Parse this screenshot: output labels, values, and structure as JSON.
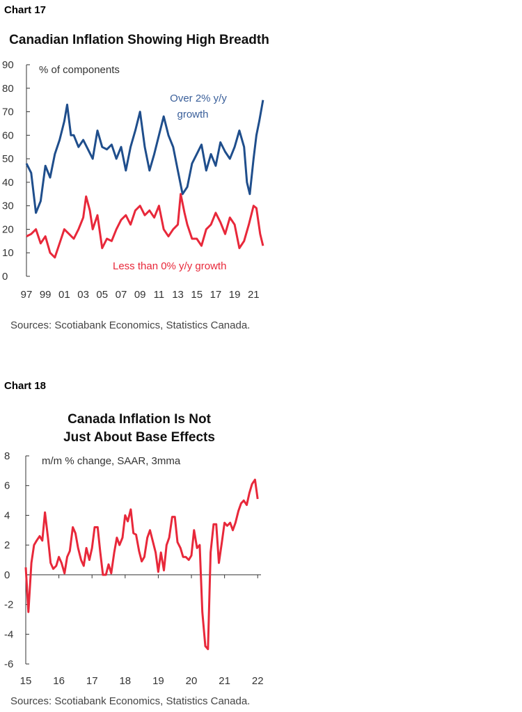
{
  "charts": [
    {
      "label": "Chart 17",
      "title_lines": [
        "Canadian Inflation Showing High Breadth"
      ],
      "unit_label": "% of components",
      "yticks": [
        "90",
        "80",
        "70",
        "60",
        "50",
        "40",
        "30",
        "20",
        "10",
        "0"
      ],
      "xticks": [
        "97",
        "99",
        "01",
        "03",
        "05",
        "07",
        "09",
        "11",
        "13",
        "15",
        "17",
        "19",
        "21"
      ],
      "annotations": {
        "series1_line1": "Over 2% y/y",
        "series1_line2": "growth",
        "series2": "Less than 0% y/y growth"
      },
      "source": "Sources: Scotiabank Economics, Statistics Canada."
    },
    {
      "label": "Chart 18",
      "title_lines": [
        "Canada Inflation Is Not",
        "Just About Base Effects"
      ],
      "unit_label": "m/m % change, SAAR, 3mma",
      "yticks": [
        "8",
        "6",
        "4",
        "2",
        "0",
        "-2",
        "-4",
        "-6"
      ],
      "xticks": [
        "15",
        "16",
        "17",
        "18",
        "19",
        "20",
        "21",
        "22"
      ],
      "source": "Sources: Scotiabank Economics, Statistics Canada."
    }
  ],
  "chart_data": [
    {
      "type": "line",
      "title": "Canadian Inflation Showing High Breadth",
      "ylabel": "% of components",
      "ylim": [
        0,
        90
      ],
      "xlim": [
        1997,
        2022.3
      ],
      "grid": false,
      "colors": {
        "over2": "#1f4e8c",
        "below0": "#e8283a"
      },
      "series": [
        {
          "name": "Over 2% y/y growth",
          "x": [
            1997.0,
            1997.5,
            1998.0,
            1998.5,
            1999.0,
            1999.5,
            2000.0,
            2000.5,
            2001.0,
            2001.3,
            2001.7,
            2002.0,
            2002.5,
            2003.0,
            2003.5,
            2004.0,
            2004.5,
            2005.0,
            2005.5,
            2006.0,
            2006.5,
            2007.0,
            2007.5,
            2008.0,
            2008.5,
            2009.0,
            2009.5,
            2010.0,
            2010.5,
            2011.0,
            2011.5,
            2012.0,
            2012.5,
            2013.0,
            2013.5,
            2014.0,
            2014.5,
            2015.0,
            2015.5,
            2016.0,
            2016.5,
            2017.0,
            2017.5,
            2018.0,
            2018.5,
            2019.0,
            2019.5,
            2020.0,
            2020.3,
            2020.6,
            2021.0,
            2021.3,
            2021.6,
            2022.0
          ],
          "values": [
            48,
            44,
            27,
            32,
            47,
            42,
            52,
            58,
            66,
            73,
            60,
            60,
            55,
            58,
            54,
            50,
            62,
            55,
            54,
            56,
            50,
            55,
            45,
            55,
            62,
            70,
            55,
            45,
            52,
            60,
            68,
            60,
            55,
            45,
            35,
            38,
            48,
            52,
            56,
            45,
            52,
            47,
            57,
            53,
            50,
            55,
            62,
            55,
            40,
            35,
            50,
            60,
            66,
            75
          ]
        },
        {
          "name": "Less than 0% y/y growth",
          "x": [
            1997.0,
            1997.5,
            1998.0,
            1998.5,
            1999.0,
            1999.5,
            2000.0,
            2000.5,
            2001.0,
            2001.5,
            2002.0,
            2002.5,
            2003.0,
            2003.3,
            2003.7,
            2004.0,
            2004.5,
            2005.0,
            2005.5,
            2006.0,
            2006.5,
            2007.0,
            2007.5,
            2008.0,
            2008.5,
            2009.0,
            2009.5,
            2010.0,
            2010.5,
            2011.0,
            2011.5,
            2012.0,
            2012.5,
            2013.0,
            2013.3,
            2013.7,
            2014.0,
            2014.5,
            2015.0,
            2015.5,
            2016.0,
            2016.5,
            2017.0,
            2017.5,
            2018.0,
            2018.5,
            2019.0,
            2019.5,
            2020.0,
            2020.5,
            2021.0,
            2021.3,
            2021.7,
            2022.0
          ],
          "values": [
            17,
            18,
            20,
            14,
            17,
            10,
            8,
            14,
            20,
            18,
            16,
            20,
            25,
            34,
            28,
            20,
            26,
            12,
            16,
            15,
            20,
            24,
            26,
            22,
            28,
            30,
            26,
            28,
            25,
            30,
            20,
            17,
            20,
            22,
            35,
            27,
            22,
            16,
            16,
            13,
            20,
            22,
            27,
            23,
            18,
            25,
            22,
            12,
            15,
            22,
            30,
            29,
            18,
            13
          ]
        }
      ]
    },
    {
      "type": "line",
      "title": "Canada Inflation Is Not Just About Base Effects",
      "ylabel": "m/m % change, SAAR, 3mma",
      "ylim": [
        -6,
        8
      ],
      "xlim": [
        2015,
        2022.1
      ],
      "grid": false,
      "colors": {
        "line": "#e8283a"
      },
      "series": [
        {
          "name": "",
          "x": [
            2015.0,
            2015.08,
            2015.17,
            2015.25,
            2015.33,
            2015.42,
            2015.5,
            2015.58,
            2015.67,
            2015.75,
            2015.83,
            2015.92,
            2016.0,
            2016.08,
            2016.17,
            2016.25,
            2016.33,
            2016.42,
            2016.5,
            2016.58,
            2016.67,
            2016.75,
            2016.83,
            2016.92,
            2017.0,
            2017.08,
            2017.17,
            2017.25,
            2017.33,
            2017.42,
            2017.5,
            2017.58,
            2017.67,
            2017.75,
            2017.83,
            2017.92,
            2018.0,
            2018.08,
            2018.17,
            2018.25,
            2018.33,
            2018.42,
            2018.5,
            2018.58,
            2018.67,
            2018.75,
            2018.83,
            2018.92,
            2019.0,
            2019.08,
            2019.17,
            2019.25,
            2019.33,
            2019.42,
            2019.5,
            2019.58,
            2019.67,
            2019.75,
            2019.83,
            2019.92,
            2020.0,
            2020.08,
            2020.17,
            2020.25,
            2020.33,
            2020.42,
            2020.5,
            2020.58,
            2020.67,
            2020.75,
            2020.83,
            2020.92,
            2021.0,
            2021.08,
            2021.17,
            2021.25,
            2021.33,
            2021.42,
            2021.5,
            2021.58,
            2021.67,
            2021.75,
            2021.83,
            2021.92,
            2022.0
          ],
          "values": [
            0.5,
            -2.5,
            0.8,
            2.0,
            2.3,
            2.6,
            2.3,
            4.2,
            2.5,
            0.8,
            0.4,
            0.6,
            1.2,
            0.8,
            0.1,
            1.2,
            1.6,
            3.2,
            2.8,
            1.8,
            1.0,
            0.6,
            1.8,
            1.0,
            1.8,
            3.2,
            3.2,
            1.5,
            0.0,
            0.0,
            0.7,
            0.1,
            1.5,
            2.5,
            2.0,
            2.5,
            4.0,
            3.6,
            4.4,
            2.8,
            2.7,
            1.6,
            0.9,
            1.2,
            2.5,
            3.0,
            2.3,
            1.5,
            0.2,
            1.5,
            0.3,
            2.0,
            2.5,
            3.9,
            3.9,
            2.2,
            1.8,
            1.2,
            1.2,
            1.0,
            1.3,
            3.0,
            1.8,
            2.0,
            -2.5,
            -4.8,
            -5.0,
            1.5,
            3.4,
            3.4,
            0.8,
            2.2,
            3.5,
            3.3,
            3.5,
            3.0,
            3.5,
            4.3,
            4.8,
            5.0,
            4.7,
            5.5,
            6.1,
            6.4,
            5.1
          ]
        }
      ]
    }
  ]
}
